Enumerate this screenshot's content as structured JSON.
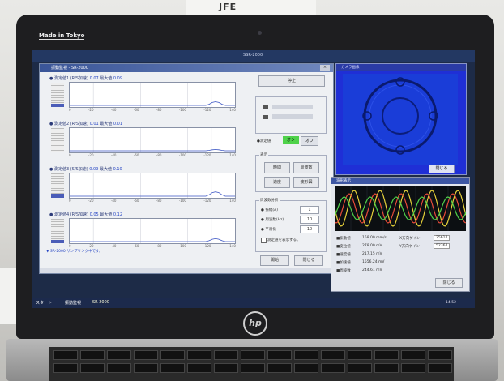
{
  "photo": {
    "brand_label": "Made in Tokyo",
    "top_logo": "JFE",
    "laptop_logo": "hp"
  },
  "screen": {
    "desktop_title": "SSR-2000",
    "main_window": {
      "title": "振動監視 - SR-2000",
      "close_label": "×",
      "channels": [
        {
          "name": "● 測定値1",
          "scale_label": "(R/S加速)",
          "value": "0.07",
          "max_label": "最大値",
          "max_value": "0.09",
          "level": 0.15
        },
        {
          "name": "● 測定値2",
          "scale_label": "(R/S加速)",
          "value": "0.01",
          "max_label": "最大値",
          "max_value": "0.01",
          "level": 0.05
        },
        {
          "name": "● 測定値3",
          "scale_label": "(S/S加速)",
          "value": "0.09",
          "max_label": "最大値",
          "max_value": "0.10",
          "level": 0.18
        },
        {
          "name": "● 測定値4",
          "scale_label": "(R/S加速)",
          "value": "0.05",
          "max_label": "最大値",
          "max_value": "0.12",
          "level": 0.12
        }
      ],
      "tick_labels": [
        "0",
        "-20",
        "-40",
        "-60",
        "-80",
        "-100",
        "-120",
        "-140"
      ],
      "status_message": "▼ SR-2000 サンプリング中です。",
      "controls": {
        "stop_button": "停止",
        "display_group": "表示",
        "buttons": [
          "時間",
          "周波数",
          "速度",
          "波形図"
        ],
        "mode_label": "●測定値",
        "mode_on": "オン",
        "mode_off": "オフ",
        "freq_group": "周波数分析",
        "freq_rows": [
          {
            "label": "● 振幅(A)",
            "value": "1"
          },
          {
            "label": "● 周波数(Hz)",
            "value": "10"
          },
          {
            "label": "● 平滑化",
            "value": "10"
          }
        ],
        "checkbox_label": "測定値を表示する。",
        "start_button": "開始",
        "close_button": "閉じる"
      }
    },
    "camera_window": {
      "title": "カメラ画像",
      "close_button": "閉じる"
    },
    "wave_window": {
      "title": "波形表示",
      "readouts": [
        {
          "label": "■振動値",
          "value": "158.00 mm/s",
          "sub_label": "X方向ゲイン",
          "sub_value": "25614"
        },
        {
          "label": "■変位値",
          "value": "278.00 mV",
          "sub_label": "Y方向ゲイン",
          "sub_value": "52364"
        },
        {
          "label": "■速度値",
          "value": "217.15 mV"
        },
        {
          "label": "■加速値",
          "value": "1556.24 mV"
        },
        {
          "label": "■周波数",
          "value": "244.61 mV"
        }
      ],
      "close_button": "閉じる"
    },
    "taskbar": {
      "start": "スタート",
      "app": "振動監視",
      "app2": "SR-2000",
      "time": "14:52"
    }
  },
  "colors": {
    "window_bg": "#eef0f3",
    "title_blue": "#3a5598",
    "camera_blue": "#1f2fd6",
    "wave_bg": "#0c0f12",
    "value_blue": "#2746c4",
    "toggle_green": "#4fd24a"
  }
}
